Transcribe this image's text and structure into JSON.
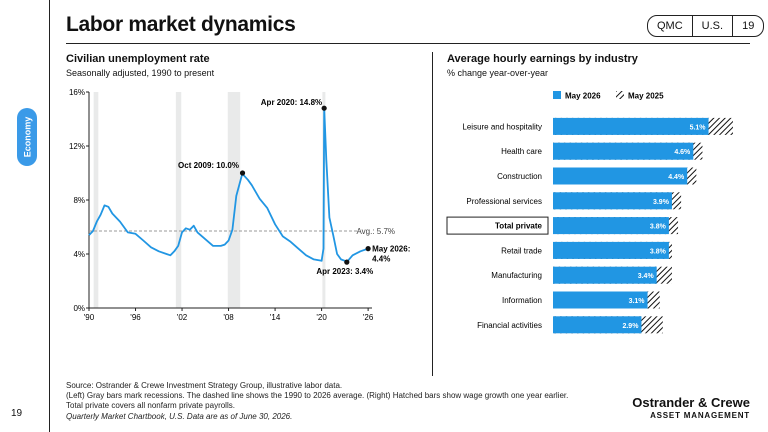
{
  "header": {
    "title": "Labor market dynamics",
    "badges": [
      "QMC",
      "U.S.",
      "19"
    ]
  },
  "sidebar": {
    "tag": "Economy"
  },
  "left_panel": {
    "title": "Civilian unemployment rate",
    "subtitle": "Seasonally adjusted, 1990 to present"
  },
  "right_panel": {
    "title": "Average hourly earnings by industry",
    "subtitle": "% change year-over-year"
  },
  "footer": {
    "lines": [
      "Source: Ostrander & Crewe Investment Strategy Group, illustrative labor data.",
      "(Left) Gray bars mark recessions. The dashed line shows the 1990 to 2026 average. (Right) Hatched bars show wage growth one year earlier.",
      "Total private covers all nonfarm private payrolls."
    ],
    "note": "Quarterly Market Chartbook, U.S. Data are as of June 30, 2026.",
    "page": "19"
  },
  "brand": {
    "name": "Ostrander & Crewe",
    "sub": "ASSET MANAGEMENT"
  },
  "colors": {
    "accent": "#2196e3",
    "recession": "#e9eaea",
    "average": "#9a9a9a"
  },
  "chart_data": [
    {
      "type": "line",
      "title": "Civilian unemployment rate",
      "subtitle": "Seasonally adjusted, 1990 to present",
      "xlim": [
        1990,
        2026.5
      ],
      "ylim": [
        0,
        16
      ],
      "x_ticks": [
        1990,
        1996,
        2002,
        2008,
        2014,
        2020,
        2026
      ],
      "x_tick_labels": [
        "'90",
        "'96",
        "'02",
        "'08",
        "'14",
        "'20",
        "'26"
      ],
      "y_ticks": [
        0,
        4,
        8,
        12,
        16
      ],
      "y_tick_labels": [
        "0%",
        "4%",
        "8%",
        "12%",
        "16%"
      ],
      "recessions": [
        [
          1990.6,
          1991.2
        ],
        [
          2001.2,
          2001.9
        ],
        [
          2007.9,
          2009.5
        ],
        [
          2020.1,
          2020.4
        ]
      ],
      "average": {
        "value": 5.7,
        "label": "Avg.: 5.7%"
      },
      "series": [
        {
          "x": [
            1990,
            1990.5,
            1991,
            1991.5,
            1992,
            1992.5,
            1993,
            1994,
            1995,
            1996,
            1997,
            1998,
            1999,
            2000,
            2000.5,
            2001,
            2001.5,
            2002,
            2002.5,
            2003,
            2003.5,
            2004,
            2005,
            2006,
            2007,
            2007.5,
            2008,
            2008.5,
            2009,
            2009.8,
            2010,
            2010.5,
            2011,
            2012,
            2013,
            2014,
            2015,
            2016,
            2017,
            2018,
            2019,
            2020.0,
            2020.25,
            2020.33,
            2020.6,
            2021,
            2021.5,
            2022,
            2022.5,
            2023,
            2023.25,
            2024,
            2025,
            2026
          ],
          "y": [
            5.4,
            5.7,
            6.4,
            6.9,
            7.6,
            7.5,
            7.0,
            6.4,
            5.6,
            5.5,
            5.0,
            4.5,
            4.2,
            4.0,
            3.9,
            4.2,
            4.6,
            5.6,
            5.9,
            5.8,
            6.1,
            5.6,
            5.1,
            4.6,
            4.6,
            4.7,
            5.0,
            5.8,
            8.3,
            10.0,
            9.8,
            9.5,
            9.1,
            8.1,
            7.4,
            6.2,
            5.3,
            4.9,
            4.4,
            3.9,
            3.6,
            3.5,
            4.4,
            14.8,
            11.0,
            6.7,
            5.4,
            4.0,
            3.6,
            3.5,
            3.4,
            3.9,
            4.2,
            4.4
          ]
        }
      ],
      "annotations": [
        {
          "x": 2009.8,
          "y": 10.0,
          "label": "Oct 2009: 10.0%"
        },
        {
          "x": 2020.33,
          "y": 14.8,
          "label": "Apr 2020: 14.8%"
        },
        {
          "x": 2023.25,
          "y": 3.4,
          "label": "Apr 2023: 3.4%"
        },
        {
          "x": 2026,
          "y": 4.4,
          "label": "May 2026:",
          "label2": "4.4%"
        }
      ]
    },
    {
      "type": "bar",
      "orientation": "horizontal",
      "title": "Average hourly earnings by industry",
      "subtitle": "% change year-over-year",
      "legend": [
        "May 2026",
        "May 2025"
      ],
      "legend_position": "top",
      "categories": [
        "Leisure and hospitality",
        "Health care",
        "Construction",
        "Professional services",
        "Total private",
        "Retail trade",
        "Manufacturing",
        "Information",
        "Financial activities"
      ],
      "highlight": "Total private",
      "series": [
        {
          "name": "May 2026",
          "values": [
            5.1,
            4.6,
            4.4,
            3.9,
            3.8,
            3.8,
            3.4,
            3.1,
            2.9
          ]
        },
        {
          "name": "May 2025",
          "values": [
            5.9,
            4.9,
            4.7,
            4.2,
            4.1,
            3.9,
            3.9,
            3.5,
            3.6
          ]
        }
      ],
      "value_labels": [
        "5.1%",
        "4.6%",
        "4.4%",
        "3.9%",
        "3.8%",
        "3.8%",
        "3.4%",
        "3.1%",
        "2.9%"
      ]
    }
  ]
}
